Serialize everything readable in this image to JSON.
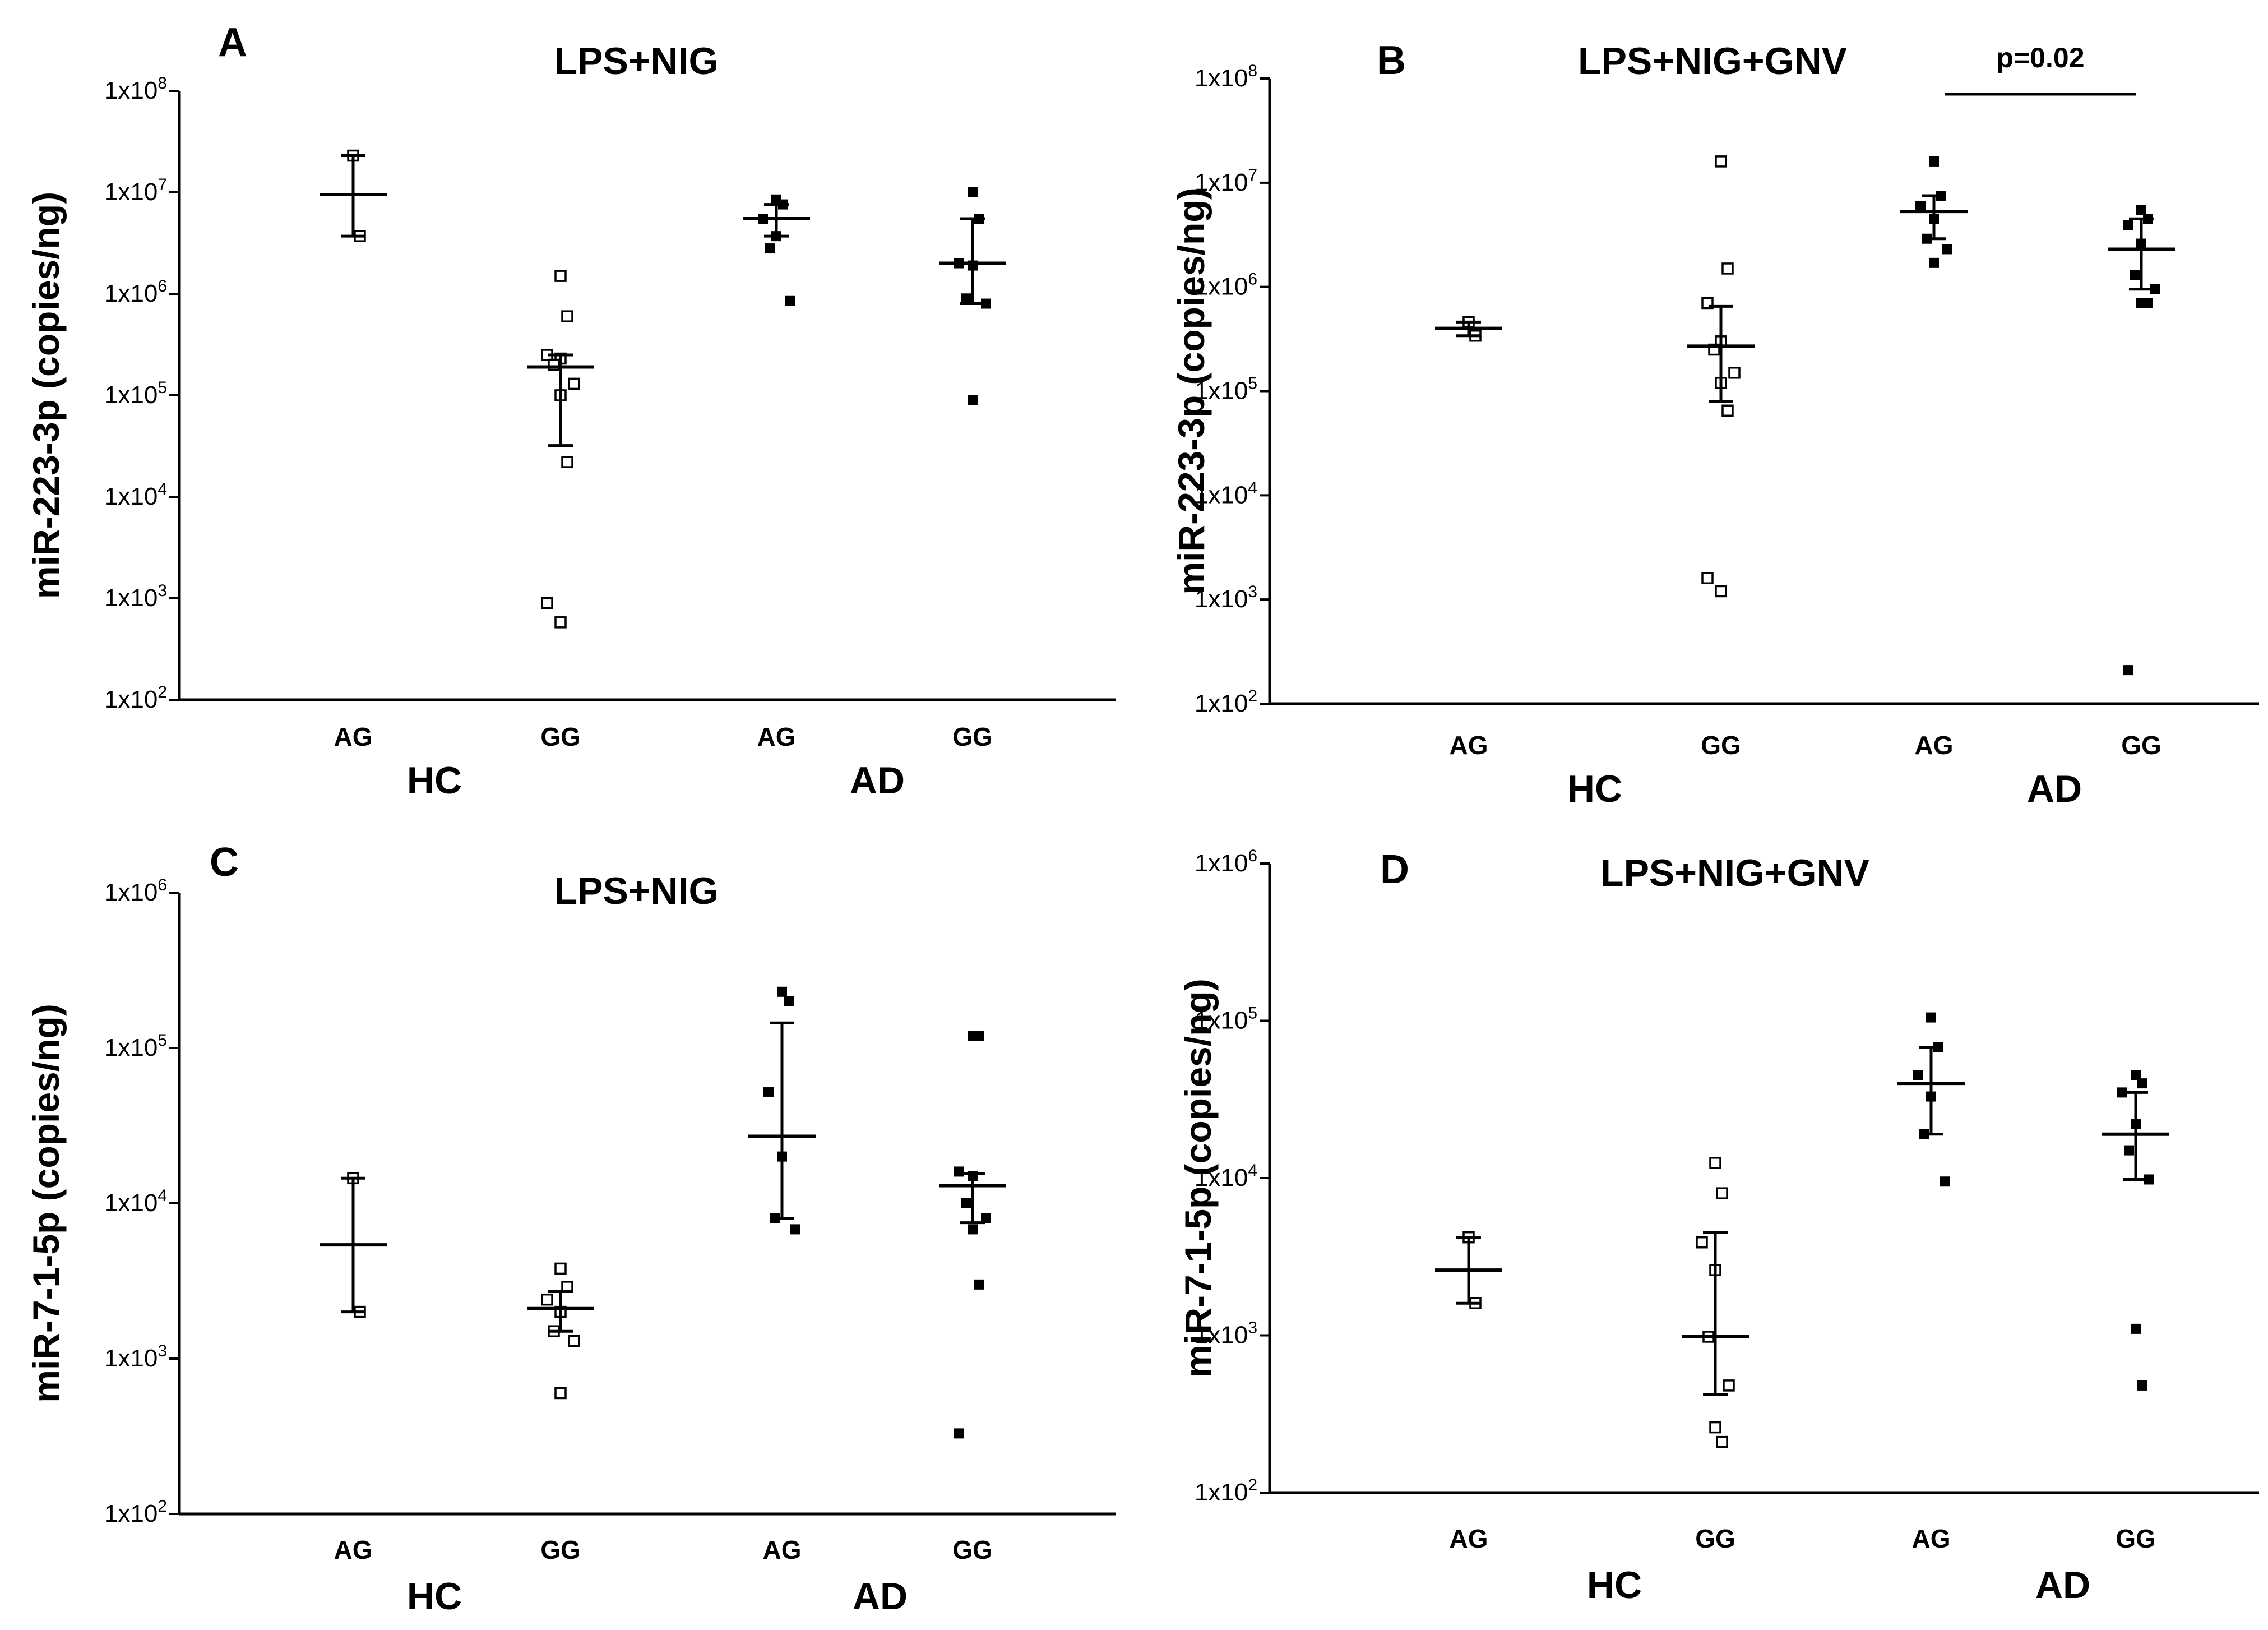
{
  "chart_data": [
    {
      "type": "scatter",
      "panel": "A",
      "title": "LPS+NIG",
      "ylabel": "miR-223-3p (copies/ng)",
      "yscale": "log",
      "ylim": [
        100,
        100000000
      ],
      "yticks": [
        {
          "base": "1x10",
          "exp": "2"
        },
        {
          "base": "1x10",
          "exp": "3"
        },
        {
          "base": "1x10",
          "exp": "4"
        },
        {
          "base": "1x10",
          "exp": "5"
        },
        {
          "base": "1x10",
          "exp": "6"
        },
        {
          "base": "1x10",
          "exp": "7"
        },
        {
          "base": "1x10",
          "exp": "8"
        }
      ],
      "group_labels": [
        "HC",
        "AD"
      ],
      "annotation": null,
      "categories": [
        {
          "label": "AG",
          "group": "HC",
          "filled": false,
          "center": 9500000,
          "err": [
            3700000,
            23000000
          ],
          "points": [
            23000000,
            3700000
          ]
        },
        {
          "label": "GG",
          "group": "HC",
          "filled": false,
          "center": 190000,
          "err": [
            32000,
            250000
          ],
          "points": [
            1500000,
            600000,
            250000,
            230000,
            200000,
            130000,
            100000,
            22000,
            900,
            580
          ]
        },
        {
          "label": "AG",
          "group": "AD",
          "filled": true,
          "center": 5500000,
          "err": [
            3700000,
            7600000
          ],
          "points": [
            8500000,
            7600000,
            5500000,
            3700000,
            2800000,
            850000
          ]
        },
        {
          "label": "GG",
          "group": "AD",
          "filled": true,
          "center": 2000000,
          "err": [
            800000,
            5500000
          ],
          "points": [
            10000000,
            5500000,
            2000000,
            1900000,
            900000,
            800000,
            90000
          ]
        }
      ]
    },
    {
      "type": "scatter",
      "panel": "B",
      "title": "LPS+NIG+GNV",
      "ylabel": "miR-223-3p (copies/ng)",
      "yscale": "log",
      "ylim": [
        100,
        100000000
      ],
      "yticks": [
        {
          "base": "1x10",
          "exp": "2"
        },
        {
          "base": "1x10",
          "exp": "3"
        },
        {
          "base": "1x10",
          "exp": "4"
        },
        {
          "base": "1x10",
          "exp": "5"
        },
        {
          "base": "1x10",
          "exp": "6"
        },
        {
          "base": "1x10",
          "exp": "7"
        },
        {
          "base": "1x10",
          "exp": "8"
        }
      ],
      "group_labels": [
        "HC",
        "AD"
      ],
      "annotation": {
        "text": "p=0.02",
        "from": 2,
        "to": 3
      },
      "categories": [
        {
          "label": "AG",
          "group": "HC",
          "filled": false,
          "center": 400000,
          "err": [
            340000,
            460000
          ],
          "points": [
            460000,
            340000
          ]
        },
        {
          "label": "GG",
          "group": "HC",
          "filled": false,
          "center": 270000,
          "err": [
            80000,
            650000
          ],
          "points": [
            16000000,
            1500000,
            700000,
            300000,
            250000,
            150000,
            120000,
            65000,
            1600,
            1200
          ]
        },
        {
          "label": "AG",
          "group": "AD",
          "filled": true,
          "center": 5300000,
          "err": [
            2900000,
            7500000
          ],
          "points": [
            16000000,
            7500000,
            6000000,
            4500000,
            2900000,
            2300000,
            1700000
          ]
        },
        {
          "label": "GG",
          "group": "AD",
          "filled": true,
          "center": 2300000,
          "err": [
            950000,
            4500000
          ],
          "points": [
            5500000,
            4500000,
            3900000,
            2600000,
            1300000,
            950000,
            700000,
            700000,
            210
          ]
        }
      ]
    },
    {
      "type": "scatter",
      "panel": "C",
      "title": "LPS+NIG",
      "ylabel": "miR-7-1-5p (copies/ng)",
      "yscale": "log",
      "ylim": [
        100,
        1000000
      ],
      "yticks": [
        {
          "base": "1x10",
          "exp": "2"
        },
        {
          "base": "1x10",
          "exp": "3"
        },
        {
          "base": "1x10",
          "exp": "4"
        },
        {
          "base": "1x10",
          "exp": "5"
        },
        {
          "base": "1x10",
          "exp": "6"
        }
      ],
      "group_labels": [
        "HC",
        "AD"
      ],
      "annotation": null,
      "categories": [
        {
          "label": "AG",
          "group": "HC",
          "filled": false,
          "center": 5400,
          "err": [
            2000,
            14500
          ],
          "points": [
            14500,
            2000
          ]
        },
        {
          "label": "GG",
          "group": "HC",
          "filled": false,
          "center": 2100,
          "err": [
            1500,
            2700
          ],
          "points": [
            3800,
            2900,
            2400,
            2000,
            1500,
            1300,
            600
          ]
        },
        {
          "label": "AG",
          "group": "AD",
          "filled": true,
          "center": 27000,
          "err": [
            8000,
            145000
          ],
          "points": [
            230000,
            200000,
            52000,
            20000,
            8000,
            6800
          ]
        },
        {
          "label": "GG",
          "group": "AD",
          "filled": true,
          "center": 13000,
          "err": [
            7500,
            15500
          ],
          "points": [
            120000,
            120000,
            16000,
            15000,
            10000,
            8000,
            6800,
            3000,
            330
          ]
        }
      ]
    },
    {
      "type": "scatter",
      "panel": "D",
      "title": "LPS+NIG+GNV",
      "ylabel": "miR-7-1-5p (copies/ng)",
      "yscale": "log",
      "ylim": [
        100,
        1000000
      ],
      "yticks": [
        {
          "base": "1x10",
          "exp": "2"
        },
        {
          "base": "1x10",
          "exp": "3"
        },
        {
          "base": "1x10",
          "exp": "4"
        },
        {
          "base": "1x10",
          "exp": "5"
        },
        {
          "base": "1x10",
          "exp": "6"
        }
      ],
      "group_labels": [
        "HC",
        "AD"
      ],
      "annotation": null,
      "categories": [
        {
          "label": "AG",
          "group": "HC",
          "filled": false,
          "center": 2600,
          "err": [
            1600,
            4200
          ],
          "points": [
            4200,
            1600
          ]
        },
        {
          "label": "GG",
          "group": "HC",
          "filled": false,
          "center": 980,
          "err": [
            420,
            4500
          ],
          "points": [
            12500,
            8000,
            3900,
            2600,
            980,
            480,
            260,
            210
          ]
        },
        {
          "label": "AG",
          "group": "AD",
          "filled": true,
          "center": 40000,
          "err": [
            19000,
            68000
          ],
          "points": [
            105000,
            68000,
            45000,
            33000,
            19000,
            9500
          ]
        },
        {
          "label": "GG",
          "group": "AD",
          "filled": true,
          "center": 19000,
          "err": [
            9800,
            35000
          ],
          "points": [
            45000,
            40000,
            35000,
            22000,
            15000,
            9800,
            1100,
            480
          ]
        }
      ]
    }
  ]
}
